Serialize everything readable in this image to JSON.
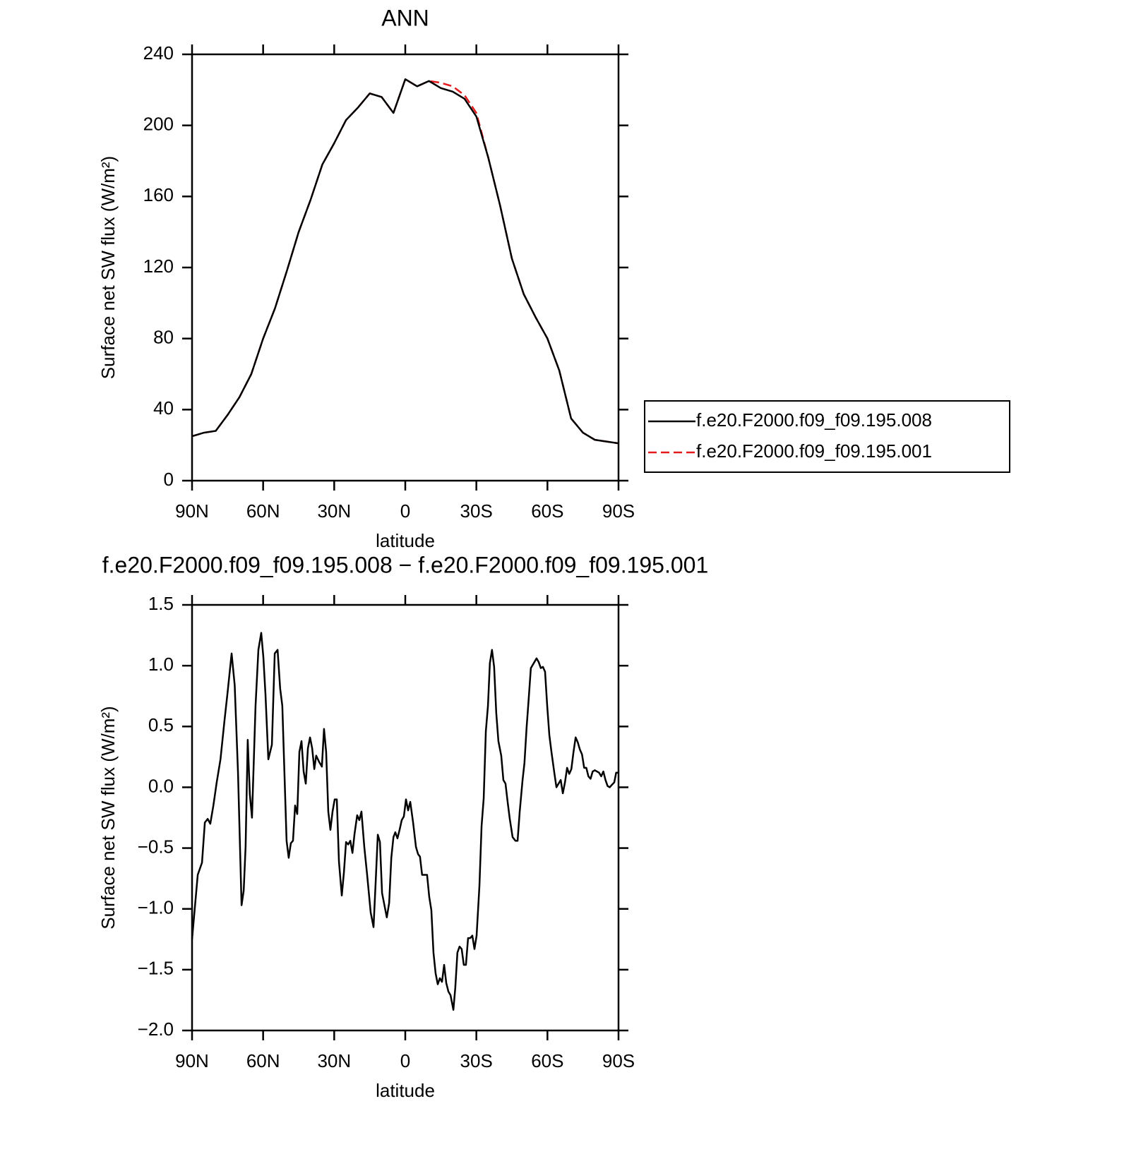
{
  "chart_data": [
    {
      "type": "line",
      "title": "ANN",
      "xlabel": "latitude",
      "ylabel": "Surface net SW flux (W/m²)",
      "x": [
        90,
        85,
        80,
        75,
        70,
        65,
        60,
        55,
        50,
        45,
        40,
        35,
        30,
        25,
        20,
        15,
        10,
        5,
        0,
        -5,
        -10,
        -15,
        -20,
        -25,
        -30,
        -35,
        -40,
        -45,
        -50,
        -55,
        -60,
        -65,
        -70,
        -75,
        -80,
        -85,
        -90
      ],
      "series": [
        {
          "name": "f.e20.F2000.f09_f09.195.001",
          "color": "#e41a1c",
          "style": "dashed",
          "values": [
            25,
            27,
            28,
            37,
            47,
            60,
            80,
            97,
            118,
            140,
            158,
            178,
            190,
            203,
            210,
            218,
            216,
            207,
            226,
            222,
            225,
            224,
            222,
            217,
            207,
            182,
            155,
            125,
            105,
            92,
            80,
            62,
            35,
            27,
            23,
            22,
            21
          ]
        },
        {
          "name": "f.e20.F2000.f09_f09.195.008",
          "color": "#000000",
          "style": "solid",
          "values": [
            25,
            27,
            28,
            37,
            47,
            60,
            80,
            97,
            118,
            140,
            158,
            178,
            190,
            203,
            210,
            218,
            216,
            207,
            226,
            222,
            225,
            221,
            219,
            215,
            205,
            182,
            155,
            125,
            105,
            92,
            80,
            62,
            35,
            27,
            23,
            22,
            21
          ]
        }
      ],
      "xlim": [
        90,
        -90
      ],
      "xticks": [
        {
          "value": 90,
          "label": "90N"
        },
        {
          "value": 60,
          "label": "60N"
        },
        {
          "value": 30,
          "label": "30N"
        },
        0,
        {
          "value": -30,
          "label": "30S"
        },
        {
          "value": -60,
          "label": "60S"
        },
        {
          "value": -90,
          "label": "90S"
        }
      ],
      "ylim": [
        0,
        240
      ],
      "yticks": [
        0,
        40,
        80,
        120,
        160,
        200,
        240
      ],
      "legend": "right"
    },
    {
      "type": "line",
      "title": "f.e20.F2000.f09_f09.195.008 − f.e20.F2000.f09_f09.195.001",
      "xlabel": "latitude",
      "ylabel": "Surface net SW flux (W/m²)",
      "x": [
        90,
        87.6,
        85.8,
        84.6,
        83.4,
        82.3,
        81,
        79.6,
        78,
        76.3,
        75,
        73.3,
        72,
        70.6,
        69.1,
        68.2,
        67.4,
        66.5,
        65.6,
        64.7,
        63.2,
        62,
        60.8,
        59.9,
        59,
        57.8,
        56.3,
        55.1,
        53.9,
        52.8,
        51.9,
        50.1,
        49.2,
        48.3,
        47.4,
        46.5,
        45.6,
        44.7,
        43.8,
        42.9,
        42,
        41.1,
        40.2,
        39.3,
        38.4,
        37.6,
        36.4,
        35.2,
        34.3,
        33.4,
        32.5,
        31.6,
        30.7,
        29.8,
        28.9,
        28,
        26.8,
        25.9,
        25,
        24.1,
        23.2,
        22.3,
        21.4,
        20.3,
        19.4,
        18.5,
        17.3,
        16.1,
        14.6,
        13.4,
        12.5,
        11.6,
        10.7,
        9.8,
        8.9,
        7.8,
        6.8,
        5.9,
        5,
        4.2,
        3.3,
        2.4,
        1.5,
        0.6,
        -0.3,
        -1.2,
        -2.1,
        -3.3,
        -4.5,
        -5.4,
        -6.2,
        -7.1,
        -8,
        -9.2,
        -10.1,
        -11,
        -11.9,
        -12.8,
        -13.7,
        -14.6,
        -15.5,
        -16.4,
        -17.3,
        -18.2,
        -19.1,
        -20.3,
        -21.1,
        -22,
        -22.9,
        -23.8,
        -24.7,
        -25.6,
        -26.5,
        -27.4,
        -28.3,
        -29.2,
        -30.1,
        -31.3,
        -32.2,
        -33.1,
        -34,
        -34.9,
        -35.7,
        -36.6,
        -37.5,
        -38.4,
        -39.3,
        -40.5,
        -41.4,
        -42.3,
        -43.2,
        -44.1,
        -45.3,
        -46.5,
        -47.4,
        -48.3,
        -49.5,
        -50.3,
        -51.2,
        -52.1,
        -53,
        -54.2,
        -55.4,
        -56.3,
        -57.2,
        -58.1,
        -59,
        -59.9,
        -60.8,
        -61.7,
        -62.9,
        -63.8,
        -64.7,
        -65.6,
        -66.5,
        -67.4,
        -68.3,
        -69.2,
        -70.1,
        -71,
        -71.9,
        -72.8,
        -73.7,
        -74.6,
        -75.5,
        -76.4,
        -77.3,
        -78.2,
        -79.1,
        -80,
        -80.9,
        -81.8,
        -82.7,
        -83.6,
        -84.5,
        -85.4,
        -86.3,
        -87.2,
        -88.2,
        -89,
        -90
      ],
      "values": [
        -1.25,
        -0.72,
        -0.62,
        -0.29,
        -0.26,
        -0.3,
        -0.15,
        0.04,
        0.23,
        0.55,
        0.78,
        1.1,
        0.84,
        0.12,
        -0.97,
        -0.85,
        -0.49,
        0.39,
        -0.06,
        -0.25,
        0.67,
        1.13,
        1.27,
        1.07,
        0.76,
        0.23,
        0.35,
        1.1,
        1.13,
        0.81,
        0.67,
        -0.44,
        -0.58,
        -0.46,
        -0.44,
        -0.15,
        -0.22,
        0.29,
        0.38,
        0.13,
        0.03,
        0.32,
        0.41,
        0.32,
        0.15,
        0.26,
        0.21,
        0.17,
        0.48,
        0.29,
        -0.2,
        -0.35,
        -0.2,
        -0.1,
        -0.1,
        -0.61,
        -0.89,
        -0.7,
        -0.45,
        -0.47,
        -0.44,
        -0.54,
        -0.38,
        -0.23,
        -0.27,
        -0.2,
        -0.49,
        -0.72,
        -1.03,
        -1.15,
        -0.78,
        -0.39,
        -0.45,
        -0.87,
        -0.96,
        -1.07,
        -0.95,
        -0.58,
        -0.41,
        -0.37,
        -0.42,
        -0.35,
        -0.27,
        -0.24,
        -0.1,
        -0.19,
        -0.12,
        -0.29,
        -0.49,
        -0.55,
        -0.57,
        -0.72,
        -0.72,
        -0.72,
        -0.9,
        -1.01,
        -1.36,
        -1.53,
        -1.62,
        -1.57,
        -1.6,
        -1.46,
        -1.61,
        -1.68,
        -1.71,
        -1.83,
        -1.65,
        -1.36,
        -1.31,
        -1.33,
        -1.46,
        -1.46,
        -1.24,
        -1.24,
        -1.22,
        -1.33,
        -1.22,
        -0.81,
        -0.32,
        -0.09,
        0.46,
        0.67,
        1.02,
        1.13,
        0.99,
        0.61,
        0.38,
        0.26,
        0.06,
        0.03,
        -0.12,
        -0.26,
        -0.41,
        -0.44,
        -0.44,
        -0.2,
        0.06,
        0.2,
        0.49,
        0.73,
        0.98,
        1.02,
        1.06,
        1.03,
        0.98,
        0.99,
        0.95,
        0.67,
        0.43,
        0.29,
        0.12,
        0,
        0.03,
        0.06,
        -0.05,
        0.04,
        0.16,
        0.11,
        0.15,
        0.29,
        0.41,
        0.37,
        0.31,
        0.27,
        0.16,
        0.16,
        0.09,
        0.07,
        0.13,
        0.14,
        0.13,
        0.12,
        0.09,
        0.13,
        0.06,
        0.01,
        0,
        0.02,
        0.04,
        0.12,
        0.12
      ],
      "color": "#000000",
      "style": "solid",
      "xlim": [
        90,
        -90
      ],
      "xticks": [
        {
          "value": 90,
          "label": "90N"
        },
        {
          "value": 60,
          "label": "60N"
        },
        {
          "value": 30,
          "label": "30N"
        },
        0,
        {
          "value": -30,
          "label": "30S"
        },
        {
          "value": -60,
          "label": "60S"
        },
        {
          "value": -90,
          "label": "90S"
        }
      ],
      "ylim": [
        -2,
        1.5
      ],
      "yticks": [
        {
          "value": -2,
          "label": "−2.0"
        },
        {
          "value": -1.5,
          "label": "−1.5"
        },
        {
          "value": -1,
          "label": "−1.0"
        },
        {
          "value": -0.5,
          "label": "−0.5"
        },
        {
          "value": 0,
          "label": "0.0"
        },
        0.5,
        {
          "value": 1,
          "label": "1.0"
        },
        1.5
      ]
    }
  ]
}
